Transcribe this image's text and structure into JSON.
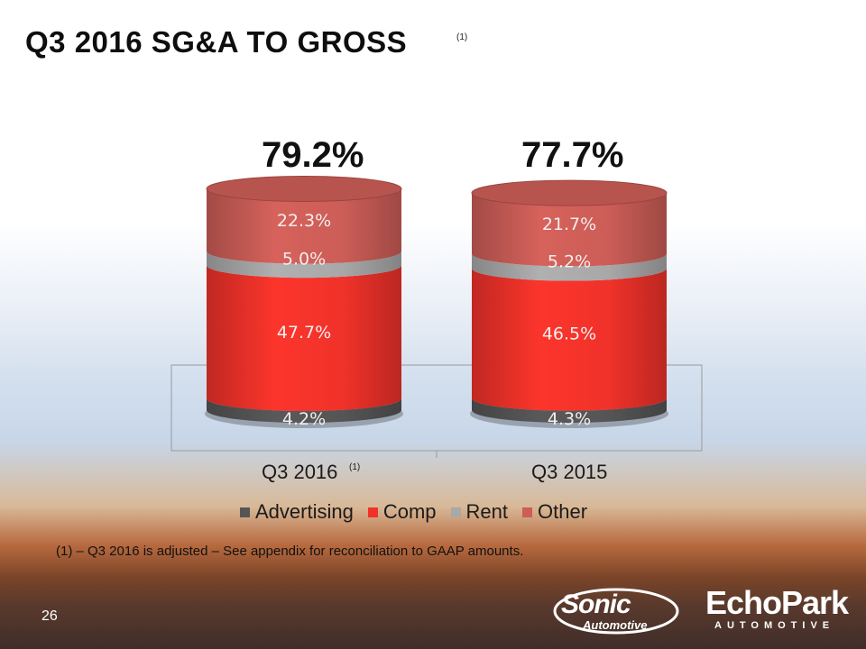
{
  "slide": {
    "title": "Q3 2016 SG&A TO GROSS",
    "title_footnote_marker": "(1)",
    "footnote": "(1) – Q3 2016 is adjusted – See appendix for reconciliation to GAAP amounts.",
    "page_number": "26"
  },
  "logos": {
    "sonic": {
      "name": "Sonic",
      "sub": "Automotive"
    },
    "echopark": {
      "name": "EchoPark",
      "sub": "AUTOMOTIVE"
    }
  },
  "chart_data": {
    "type": "bar",
    "stacked": true,
    "categories": [
      "Q3 2016",
      "Q3 2015"
    ],
    "category_footnotes": [
      "(1)",
      ""
    ],
    "totals": [
      "79.2%",
      "77.7%"
    ],
    "series": [
      {
        "name": "Advertising",
        "values": [
          4.2,
          4.3
        ],
        "labels": [
          "4.2%",
          "4.3%"
        ],
        "color": "#555555"
      },
      {
        "name": "Comp",
        "values": [
          47.7,
          46.5
        ],
        "labels": [
          "47.7%",
          "46.5%"
        ],
        "color": "#f0322a"
      },
      {
        "name": "Rent",
        "values": [
          5.0,
          5.2
        ],
        "labels": [
          "5.0%",
          "5.2%"
        ],
        "color": "#a8a8a8"
      },
      {
        "name": "Other",
        "values": [
          22.3,
          21.7
        ],
        "labels": [
          "22.3%",
          "21.7%"
        ],
        "color": "#cc5d57"
      }
    ],
    "legend_position": "bottom"
  }
}
